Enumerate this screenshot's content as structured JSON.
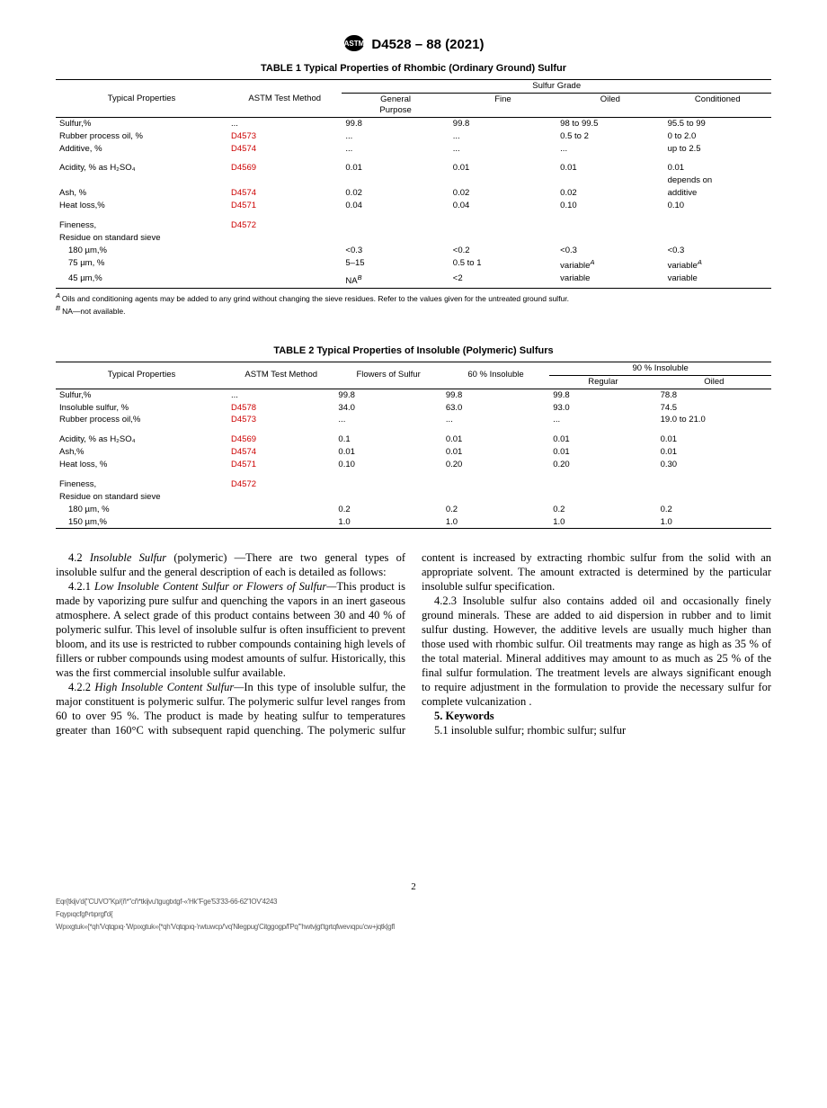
{
  "header": {
    "doc_id": "D4528 – 88 (2021)"
  },
  "table1": {
    "title": "TABLE 1 Typical Properties of Rhombic (Ordinary Ground) Sulfur",
    "col_group": "Sulfur Grade",
    "h_prop": "Typical Properties",
    "h_method": "ASTM Test Method",
    "h_cols": [
      "General Purpose",
      "Fine",
      "Oiled",
      "Conditioned"
    ],
    "rows": [
      {
        "p": "Sulfur,%",
        "m": "...",
        "m_link": false,
        "v": [
          "99.8",
          "99.8",
          "98 to 99.5",
          "95.5 to 99"
        ]
      },
      {
        "p": "Rubber process oil, %",
        "m": "D4573",
        "m_link": true,
        "v": [
          "...",
          "...",
          "0.5 to 2",
          "0 to 2.0"
        ]
      },
      {
        "p": "Additive, %",
        "m": "D4574",
        "m_link": true,
        "v": [
          "...",
          "...",
          "...",
          "up to 2.5"
        ]
      },
      {
        "spacer": true
      },
      {
        "p": "Acidity, % as H₂SO₄",
        "m": "D4569",
        "m_link": true,
        "v": [
          "0.01",
          "0.01",
          "0.01",
          "0.01"
        ]
      },
      {
        "p": "",
        "m": "",
        "m_link": false,
        "v": [
          "",
          "",
          "",
          "depends on"
        ]
      },
      {
        "p": "Ash, %",
        "m": "D4574",
        "m_link": true,
        "v": [
          "0.02",
          "0.02",
          "0.02",
          "additive"
        ]
      },
      {
        "p": "Heat loss,%",
        "m": "D4571",
        "m_link": true,
        "v": [
          "0.04",
          "0.04",
          "0.10",
          "0.10"
        ]
      },
      {
        "spacer": true
      },
      {
        "p": "Fineness,",
        "m": "D4572",
        "m_link": true,
        "v": [
          "",
          "",
          "",
          ""
        ]
      },
      {
        "p": "Residue on standard sieve",
        "m": "",
        "m_link": false,
        "v": [
          "",
          "",
          "",
          ""
        ]
      },
      {
        "p_indent": "180 µm,%",
        "m": "",
        "m_link": false,
        "v": [
          "<0.3",
          "<0.2",
          "<0.3",
          "<0.3"
        ]
      },
      {
        "p_indent": "75 µm, %",
        "m": "",
        "m_link": false,
        "v": [
          "5–15",
          "0.5 to 1",
          "variable",
          "variable"
        ],
        "sup3": "A",
        "sup4": "A"
      },
      {
        "p_indent": "45 µm,%",
        "m": "",
        "m_link": false,
        "v": [
          "NA",
          "<2",
          "variable",
          "variable"
        ],
        "sup1": "B"
      }
    ],
    "fn_a": "Oils and conditioning agents may be added to any grind without changing the sieve residues. Refer to the values given for the untreated ground sulfur.",
    "fn_b": "NA—not available."
  },
  "table2": {
    "title": "TABLE 2 Typical Properties of Insoluble (Polymeric) Sulfurs",
    "col_group": "90 % Insoluble",
    "h_prop": "Typical Properties",
    "h_method": "ASTM Test Method",
    "h_single": [
      "Flowers of Sulfur",
      "60 % Insoluble"
    ],
    "h_sub": [
      "Regular",
      "Oiled"
    ],
    "rows": [
      {
        "p": "Sulfur,%",
        "m": "...",
        "m_link": false,
        "v": [
          "99.8",
          "99.8",
          "99.8",
          "78.8"
        ]
      },
      {
        "p": "Insoluble sulfur, %",
        "m": "D4578",
        "m_link": true,
        "v": [
          "34.0",
          "63.0",
          "93.0",
          "74.5"
        ]
      },
      {
        "p": "Rubber process oil,%",
        "m": "D4573",
        "m_link": true,
        "v": [
          "...",
          "...",
          "...",
          "19.0 to 21.0"
        ]
      },
      {
        "spacer": true
      },
      {
        "p": "Acidity, % as H₂SO₄",
        "m": "D4569",
        "m_link": true,
        "v": [
          "0.1",
          "0.01",
          "0.01",
          "0.01"
        ]
      },
      {
        "p": "Ash,%",
        "m": "D4574",
        "m_link": true,
        "v": [
          "0.01",
          "0.01",
          "0.01",
          "0.01"
        ]
      },
      {
        "p": "Heat loss, %",
        "m": "D4571",
        "m_link": true,
        "v": [
          "0.10",
          "0.20",
          "0.20",
          "0.30"
        ]
      },
      {
        "spacer": true
      },
      {
        "p": "Fineness,",
        "m": "D4572",
        "m_link": true,
        "v": [
          "",
          "",
          "",
          ""
        ]
      },
      {
        "p": "Residue on standard sieve",
        "m": "",
        "m_link": false,
        "v": [
          "",
          "",
          "",
          ""
        ]
      },
      {
        "p_indent": "180 µm, %",
        "m": "",
        "m_link": false,
        "v": [
          "0.2",
          "0.2",
          "0.2",
          "0.2"
        ]
      },
      {
        "p_indent": "150 µm,%",
        "m": "",
        "m_link": false,
        "v": [
          "1.0",
          "1.0",
          "1.0",
          "1.0"
        ]
      }
    ]
  },
  "body": {
    "p42": "4.2 <i>Insoluble Sulfur</i> (polymeric) —There are two general types of insoluble sulfur and the general description of each is detailed as follows:",
    "p421": "4.2.1 <i>Low Insoluble Content Sulfur or Flowers of Sulfur—</i>This product is made by vaporizing pure sulfur and quenching the vapors in an inert gaseous atmosphere. A select grade of this product contains between 30 and 40 % of polymeric sulfur. This level of insoluble sulfur is often insufficient to prevent bloom, and its use is restricted to rubber compounds containing high levels of fillers or rubber compounds using modest amounts of sulfur. Historically, this was the first commercial insoluble sulfur available.",
    "p422": "4.2.2 <i>High Insoluble Content Sulfur—</i>In this type of insoluble sulfur, the major constituent is polymeric sulfur. The polymeric sulfur level ranges from 60 to over 95 %. The product is made by heating sulfur to temperatures greater than 160°C with subsequent rapid quenching. The polymeric sulfur content is increased by extracting rhombic sulfur from the solid with an appropriate solvent. The amount extracted is determined by the particular insoluble sulfur specification.",
    "p423": "4.2.3 Insoluble sulfur also contains added oil and occasionally finely ground minerals. These are added to aid dispersion in rubber and to limit sulfur dusting. However, the additive levels are usually much higher than those used with rhombic sulfur. Oil treatments may range as high as 35 % of the total material. Mineral additives may amount to as much as 25 % of the final sulfur formulation. The treatment levels are always significant enough to require adjustment in the formulation to provide the necessary sulfur for complete vulcanization .",
    "kw_head": "5. Keywords",
    "kw": "5.1 insoluble sulfur; rhombic sulfur; sulfur"
  },
  "page_num": "2",
  "fine1": "Eqr{tkijv'd{\"CUVO\"Kp/(ñ*\"cñ*tkijvu'tgugtxtgf-«'Hk\"Fge'53'33-66-62\"IOV'4243",
  "fine2": "Fqypıqcfgf¹rtıprgf'd{",
  "fine3": "Wpıxgtuk«{*qh'Vqtqpıq·'Wpıxgtuk«{*qh'Vqtqpıq-'rwtuwcp/'vq'Nlegpug'Citggogp/l'Pq'\"hwtvjgt'tgrtqfwevıqpu'cw+jqtk|gfl"
}
